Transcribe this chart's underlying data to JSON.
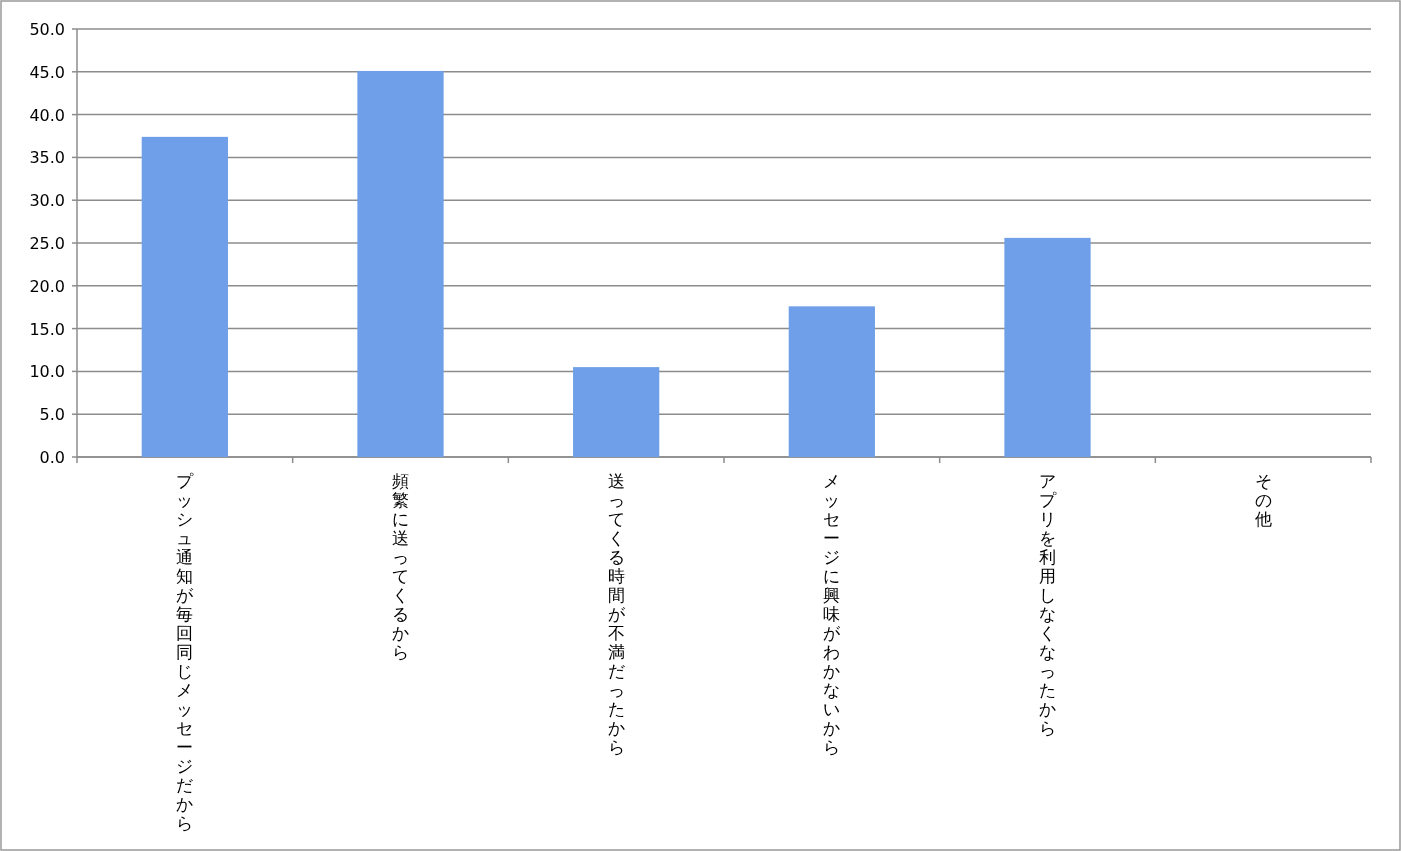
{
  "chart_data": {
    "type": "bar",
    "categories": [
      "プッシュ通知が毎回同じメッセージだから",
      "頻繁に送ってくるから",
      "送ってくる時間が不満だったから",
      "メッセージに興味がわかないから",
      "アプリを利用しなくなったから",
      "その他"
    ],
    "values": [
      37.4,
      45.1,
      10.5,
      17.6,
      25.6,
      0
    ],
    "color": "#6f9fe8",
    "ylim": [
      0,
      50
    ],
    "yticks": [
      {
        "value": 0,
        "label": "0.0"
      },
      {
        "value": 5,
        "label": "5.0"
      },
      {
        "value": 10,
        "label": "10.0"
      },
      {
        "value": 15,
        "label": "15.0"
      },
      {
        "value": 20,
        "label": "20.0"
      },
      {
        "value": 25,
        "label": "25.0"
      },
      {
        "value": 30,
        "label": "30.0"
      },
      {
        "value": 35,
        "label": "35.0"
      },
      {
        "value": 40,
        "label": "40.0"
      },
      {
        "value": 45,
        "label": "45.0"
      },
      {
        "value": 50,
        "label": "50.0"
      }
    ],
    "grid": "y",
    "legend": false
  }
}
